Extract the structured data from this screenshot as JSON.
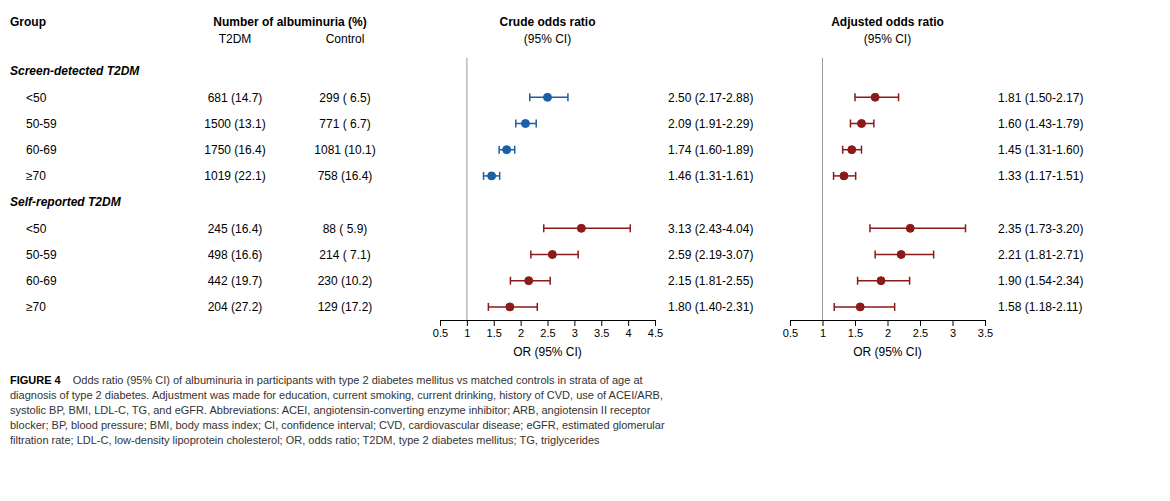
{
  "chart_data": {
    "type": "forest",
    "categories_title": "Group",
    "categories": [
      "Screen-detected T2DM",
      "<50",
      "50-59",
      "60-69",
      "≥70",
      "Self-reported T2DM",
      "<50",
      "50-59",
      "60-69",
      "≥70"
    ],
    "table": {
      "title": "Number of albuminuria (%)",
      "columns": [
        {
          "name": "T2DM",
          "values": [
            null,
            "681 (14.7)",
            "1500 (13.1)",
            "1750 (16.4)",
            "1019 (22.1)",
            null,
            "245 (16.4)",
            "498 (16.6)",
            "442 (19.7)",
            "204 (27.2)"
          ]
        },
        {
          "name": "Control",
          "values": [
            null,
            "299 ( 6.5)",
            "771 ( 6.7)",
            "1081 (10.1)",
            "758 (16.4)",
            null,
            "88 ( 5.9)",
            "214 ( 7.1)",
            "230 (10.2)",
            "129 (17.2)"
          ]
        }
      ]
    },
    "series": [
      {
        "name": "Crude odds ratio",
        "subtitle": "(95% CI)",
        "x_label": "OR (95% CI)",
        "colors": [
          null,
          "#1a5fa8",
          "#1a5fa8",
          "#1a5fa8",
          "#1a5fa8",
          null,
          "#8b1a1a",
          "#8b1a1a",
          "#8b1a1a",
          "#8b1a1a"
        ],
        "values": [
          null,
          2.5,
          2.09,
          1.74,
          1.46,
          null,
          3.13,
          2.59,
          2.15,
          1.8
        ],
        "ci_low": [
          null,
          2.17,
          1.91,
          1.6,
          1.31,
          null,
          2.43,
          2.19,
          1.81,
          1.4
        ],
        "ci_high": [
          null,
          2.88,
          2.29,
          1.89,
          1.61,
          null,
          4.04,
          3.07,
          2.55,
          2.31
        ],
        "value_labels": [
          null,
          "2.50 (2.17-2.88)",
          "2.09 (1.91-2.29)",
          "1.74 (1.60-1.89)",
          "1.46 (1.31-1.61)",
          null,
          "3.13 (2.43-4.04)",
          "2.59 (2.19-3.07)",
          "2.15 (1.81-2.55)",
          "1.80 (1.40-2.31)"
        ],
        "xlim": [
          0.5,
          4.5
        ],
        "xticks": [
          0.5,
          1,
          1.5,
          2,
          2.5,
          3,
          3.5,
          4,
          4.5
        ]
      },
      {
        "name": "Adjusted odds ratio",
        "subtitle": "(95% CI)",
        "x_label": "OR (95% CI)",
        "color": "#8b1a1a",
        "values": [
          null,
          1.81,
          1.6,
          1.45,
          1.33,
          null,
          2.35,
          2.21,
          1.9,
          1.58
        ],
        "ci_low": [
          null,
          1.5,
          1.43,
          1.31,
          1.17,
          null,
          1.73,
          1.81,
          1.54,
          1.18
        ],
        "ci_high": [
          null,
          2.17,
          1.79,
          1.6,
          1.51,
          null,
          3.2,
          2.71,
          2.34,
          2.11
        ],
        "value_labels": [
          null,
          "1.81 (1.50-2.17)",
          "1.60 (1.43-1.79)",
          "1.45 (1.31-1.60)",
          "1.33 (1.17-1.51)",
          null,
          "2.35 (1.73-3.20)",
          "2.21 (1.81-2.71)",
          "1.90 (1.54-2.34)",
          "1.58 (1.18-2.11)"
        ],
        "xlim": [
          0.5,
          3.5
        ],
        "xticks": [
          0.5,
          1,
          1.5,
          2,
          2.5,
          3,
          3.5
        ]
      }
    ],
    "reference_x": 1,
    "data_labels": true,
    "grid": false,
    "caption_label": "FIGURE 4",
    "caption": [
      "Odds ratio (95% CI) of albuminuria in participants with type 2 diabetes mellitus vs matched controls in strata of age at",
      "diagnosis of type 2 diabetes. Adjustment was made for education, current smoking, current drinking, history of CVD, use of ACEI/ARB,",
      "systolic BP, BMI, LDL-C, TG, and eGFR. Abbreviations: ACEI, angiotensin-converting enzyme inhibitor; ARB, angiotensin II receptor",
      "blocker; BP, blood pressure; BMI, body mass index; CI, confidence interval; CVD, cardiovascular disease; eGFR, estimated glomerular",
      "filtration rate; LDL-C, low-density lipoprotein cholesterol; OR, odds ratio; T2DM, type 2 diabetes mellitus; TG, triglycerides"
    ]
  }
}
